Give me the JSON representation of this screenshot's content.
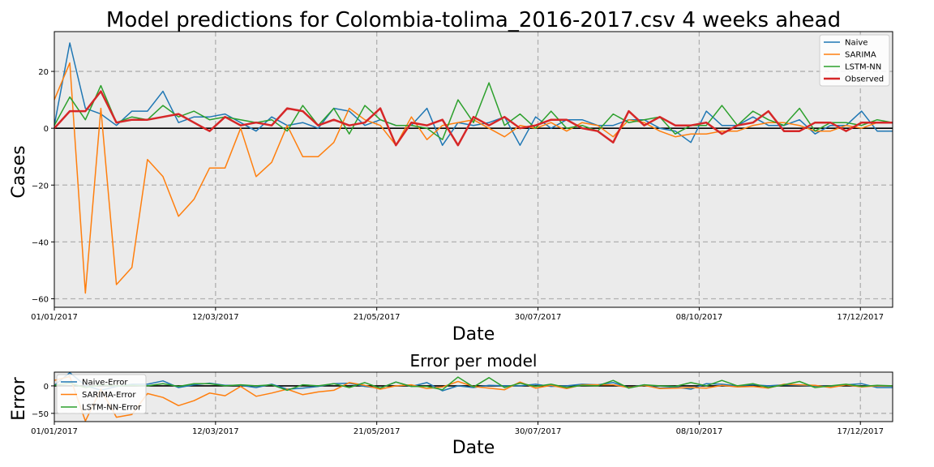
{
  "colors": {
    "naive": "#1f77b4",
    "sarima": "#ff7f0e",
    "lstm": "#2ca02c",
    "observed": "#d62728",
    "panel_bg": "#ebebeb",
    "grid": "#b0b0b0"
  },
  "chart_data": [
    {
      "type": "line",
      "title": "Model predictions for Colombia-tolima_2016-2017.csv 4 weeks ahead",
      "xlabel": "Date",
      "ylabel": "Cases",
      "x_weeks": 52,
      "xticks": [
        "01/01/2017",
        "12/03/2017",
        "21/05/2017",
        "30/07/2017",
        "08/10/2017",
        "17/12/2017"
      ],
      "xtick_weeks": [
        0,
        10,
        20,
        30,
        40,
        50
      ],
      "yticks": [
        20,
        0,
        -20,
        -40,
        -60
      ],
      "ylim": [
        -63,
        34
      ],
      "grid": true,
      "legend_position": "top-right",
      "series": [
        {
          "name": "Naive",
          "color_key": "naive",
          "values": [
            1,
            30,
            7,
            5,
            1,
            6,
            6,
            13,
            2,
            4,
            4,
            5,
            2,
            -1,
            4,
            1,
            2,
            0,
            7,
            6,
            1,
            3,
            1,
            1,
            7,
            -6,
            2,
            1,
            2,
            4,
            -6,
            4,
            0,
            3,
            3,
            1,
            1,
            3,
            3,
            0,
            -1,
            -5,
            6,
            1,
            1,
            4,
            1,
            1,
            3,
            -2,
            1,
            1,
            6,
            -1,
            -1
          ]
        },
        {
          "name": "SARIMA",
          "color_key": "sarima",
          "values": [
            10,
            23,
            -58,
            7,
            -55,
            -49,
            -11,
            -17,
            -31,
            -25,
            -14,
            -14,
            0,
            -17,
            -12,
            1,
            -10,
            -10,
            -5,
            7,
            3,
            1,
            -6,
            4,
            -4,
            1,
            2,
            3,
            0,
            -3,
            1,
            0,
            2,
            -1,
            2,
            1,
            -3,
            3,
            2,
            -1,
            -3,
            -2,
            -2,
            -1,
            -1,
            1,
            2,
            2,
            1,
            -1,
            -1,
            1,
            0,
            2,
            2
          ]
        },
        {
          "name": "LSTM-NN",
          "color_key": "lstm",
          "values": [
            1,
            11,
            3,
            15,
            2,
            4,
            3,
            8,
            4,
            6,
            3,
            4,
            3,
            2,
            3,
            -1,
            8,
            1,
            7,
            -2,
            8,
            3,
            1,
            1,
            0,
            -4,
            10,
            2,
            16,
            1,
            5,
            0,
            6,
            0,
            1,
            -1,
            5,
            2,
            3,
            4,
            -2,
            1,
            1,
            8,
            1,
            6,
            3,
            1,
            7,
            -1,
            2,
            2,
            1,
            3,
            2
          ]
        },
        {
          "name": "Observed",
          "color_key": "observed",
          "values": [
            0,
            6,
            6,
            13,
            2,
            3,
            3,
            4,
            5,
            2,
            -1,
            4,
            1,
            2,
            1,
            7,
            6,
            1,
            3,
            1,
            2,
            7,
            -6,
            2,
            1,
            3,
            -6,
            4,
            1,
            4,
            0,
            1,
            3,
            3,
            0,
            -1,
            -5,
            6,
            1,
            4,
            1,
            1,
            2,
            -2,
            1,
            2,
            6,
            -1,
            -1,
            2,
            2,
            -1,
            2,
            2,
            2
          ]
        }
      ]
    },
    {
      "type": "line",
      "title": "Error per model",
      "xlabel": "Date",
      "ylabel": "Error",
      "yticks": [
        0,
        -50
      ],
      "ylim": [
        -65,
        25
      ],
      "xticks": [
        "01/01/2017",
        "12/03/2017",
        "21/05/2017",
        "30/07/2017",
        "08/10/2017",
        "17/12/2017"
      ],
      "grid": true,
      "legend_position": "top-left",
      "series": [
        {
          "name": "Naive-Error",
          "color_key": "naive",
          "values": [
            1,
            24,
            1,
            -8,
            -1,
            3,
            3,
            9,
            -3,
            2,
            5,
            1,
            1,
            -3,
            3,
            -6,
            -4,
            -1,
            4,
            5,
            -1,
            -4,
            7,
            -1,
            6,
            -9,
            0,
            -3,
            1,
            0,
            0,
            3,
            -1,
            0,
            3,
            2,
            6,
            -3,
            2,
            -4,
            -2,
            -6,
            4,
            3,
            0,
            2,
            0,
            2,
            1,
            0,
            -1,
            2,
            4,
            -3,
            -3
          ]
        },
        {
          "name": "SARIMA-Error",
          "color_key": "sarima",
          "values": [
            10,
            17,
            -64,
            -6,
            -57,
            -52,
            -14,
            -21,
            -36,
            -27,
            -13,
            -18,
            -1,
            -19,
            -13,
            -6,
            -16,
            -11,
            -8,
            6,
            1,
            -6,
            0,
            2,
            -5,
            -2,
            8,
            -1,
            -4,
            -7,
            7,
            -4,
            1,
            -5,
            2,
            2,
            2,
            -3,
            1,
            -5,
            -4,
            -3,
            -4,
            1,
            -2,
            -1,
            -4,
            3,
            2,
            1,
            -3,
            2,
            -2,
            0,
            0
          ]
        },
        {
          "name": "LSTM-NN-Error",
          "color_key": "lstm",
          "values": [
            1,
            5,
            -3,
            2,
            0,
            1,
            0,
            4,
            -1,
            4,
            4,
            0,
            2,
            0,
            2,
            -8,
            2,
            0,
            4,
            -3,
            6,
            -4,
            7,
            -1,
            -1,
            -7,
            16,
            -2,
            15,
            -3,
            5,
            -1,
            3,
            -3,
            1,
            0,
            10,
            -4,
            2,
            0,
            -1,
            6,
            0,
            10,
            0,
            4,
            -3,
            2,
            8,
            -3,
            0,
            3,
            -1,
            1,
            0
          ]
        }
      ]
    }
  ]
}
